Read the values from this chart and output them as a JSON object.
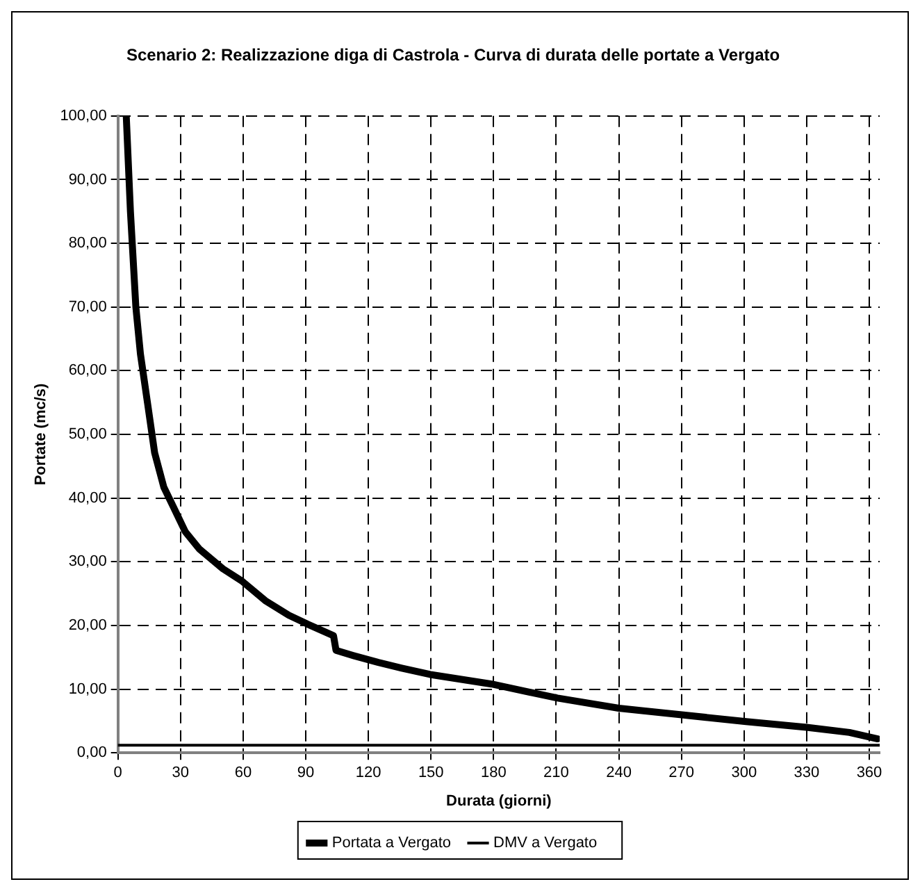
{
  "chart_data": {
    "type": "line",
    "title": "Scenario 2: Realizzazione diga di Castrola - Curva di durata delle portate a Vergato",
    "xlabel": "Durata (giorni)",
    "ylabel": "Portate (mc/s)",
    "xlim": [
      0,
      365
    ],
    "xticks": [
      0,
      30,
      60,
      90,
      120,
      150,
      180,
      210,
      240,
      270,
      300,
      330,
      360
    ],
    "ylim": [
      0,
      100
    ],
    "yticks": [
      {
        "value": 0,
        "label": "0,00"
      },
      {
        "value": 10,
        "label": "10,00"
      },
      {
        "value": 20,
        "label": "20,00"
      },
      {
        "value": 30,
        "label": "30,00"
      },
      {
        "value": 40,
        "label": "40,00"
      },
      {
        "value": 50,
        "label": "50,00"
      },
      {
        "value": 60,
        "label": "60,00"
      },
      {
        "value": 70,
        "label": "70,00"
      },
      {
        "value": 80,
        "label": "80,00"
      },
      {
        "value": 90,
        "label": "90,00"
      },
      {
        "value": 100,
        "label": "100,00"
      }
    ],
    "grid": true,
    "legend": "bottom",
    "marker": "none",
    "series": [
      {
        "name": "Portata a Vergato",
        "color": "#000000",
        "x": [
          4,
          6,
          8.6,
          10.8,
          14.2,
          17.6,
          22,
          26.6,
          32.3,
          39,
          50.3,
          59.3,
          70.6,
          81.9,
          90.9,
          103.3,
          104.5,
          113.5,
          124.8,
          136,
          149.6,
          179,
          210.6,
          240,
          269.4,
          301,
          330,
          350.5,
          364
        ],
        "values": [
          100,
          85,
          70,
          62.6,
          54.9,
          47.1,
          41.7,
          38.6,
          34.7,
          32,
          28.9,
          27,
          23.9,
          21.6,
          20.2,
          18.4,
          16.1,
          15.2,
          14.2,
          13.3,
          12.3,
          10.8,
          8.6,
          7,
          6,
          4.9,
          4,
          3.2,
          2.2
        ]
      },
      {
        "name": "DMV a Vergato",
        "color": "#000000",
        "x": [
          0,
          365
        ],
        "values": [
          1.2,
          1.2
        ]
      }
    ]
  }
}
